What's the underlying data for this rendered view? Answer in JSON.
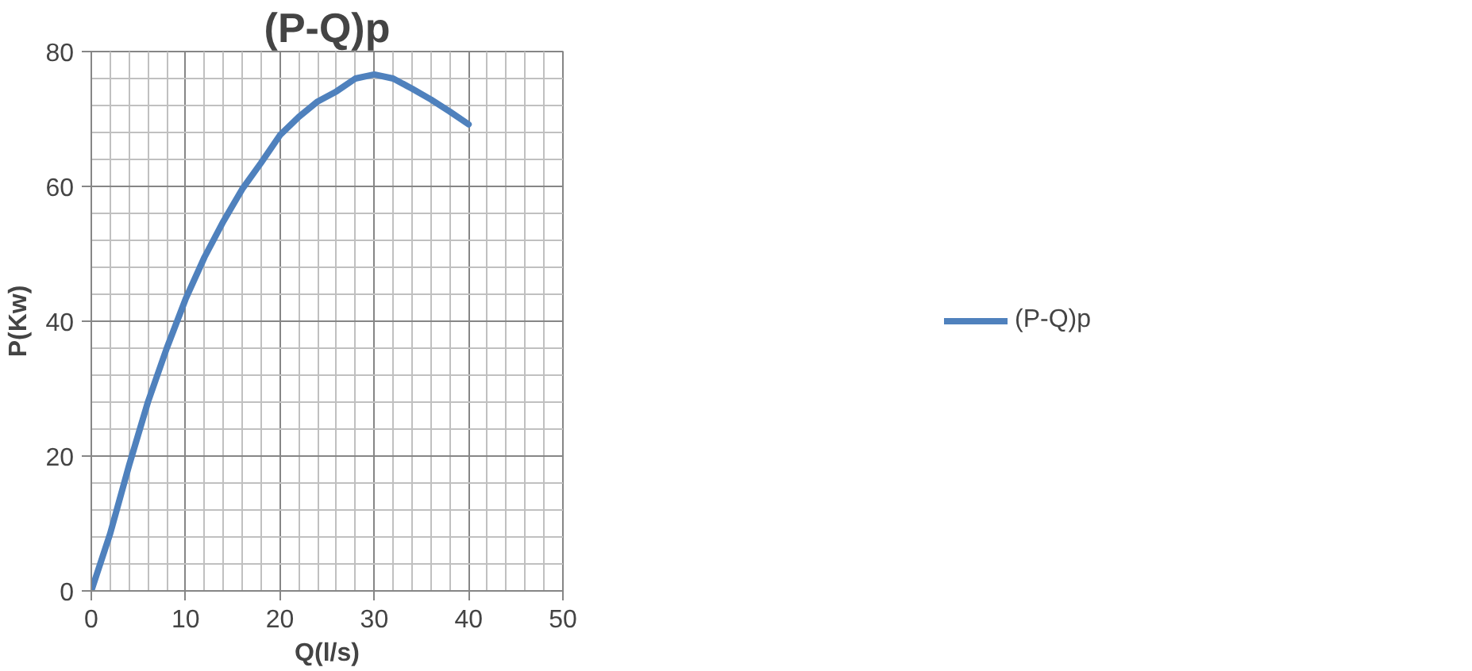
{
  "chart_data": {
    "type": "line",
    "title": "(P-Q)p",
    "xlabel": "Q(l/s)",
    "ylabel": "P(Kw)",
    "series": [
      {
        "name": "(P-Q)p",
        "color": "#4f81bd",
        "x": [
          0,
          2,
          4,
          6,
          8,
          10,
          12,
          14,
          16,
          18,
          20,
          22,
          24,
          26,
          28,
          30,
          32,
          34,
          36,
          38,
          40
        ],
        "values": [
          0,
          8.5,
          18.6,
          28,
          36,
          43.3,
          49.5,
          54.8,
          59.6,
          63.5,
          67.6,
          70.3,
          72.6,
          74.1,
          76,
          76.6,
          76,
          74.5,
          72.9,
          71.1,
          69.2
        ]
      }
    ],
    "xlim": [
      0,
      50
    ],
    "ylim": [
      0,
      80
    ],
    "xticks": [
      0,
      {
        "value": 2,
        "label": null
      },
      {
        "value": 4,
        "label": null
      },
      {
        "value": 6,
        "label": null
      },
      {
        "value": 8,
        "label": null
      },
      10,
      {
        "value": 12,
        "label": null
      },
      {
        "value": 14,
        "label": null
      },
      {
        "value": 16,
        "label": null
      },
      {
        "value": 18,
        "label": null
      },
      20,
      {
        "value": 22,
        "label": null
      },
      {
        "value": 24,
        "label": null
      },
      {
        "value": 26,
        "label": null
      },
      {
        "value": 28,
        "label": null
      },
      30,
      {
        "value": 32,
        "label": null
      },
      {
        "value": 34,
        "label": null
      },
      {
        "value": 36,
        "label": null
      },
      {
        "value": 38,
        "label": null
      },
      40,
      {
        "value": 42,
        "label": null
      },
      {
        "value": 44,
        "label": null
      },
      {
        "value": 46,
        "label": null
      },
      {
        "value": 48,
        "label": null
      },
      50
    ],
    "yticks": [
      0,
      {
        "value": 4,
        "label": null
      },
      {
        "value": 8,
        "label": null
      },
      {
        "value": 12,
        "label": null
      },
      {
        "value": 16,
        "label": null
      },
      20,
      {
        "value": 24,
        "label": null
      },
      {
        "value": 28,
        "label": null
      },
      {
        "value": 32,
        "label": null
      },
      {
        "value": 36,
        "label": null
      },
      40,
      {
        "value": 44,
        "label": null
      },
      {
        "value": 48,
        "label": null
      },
      {
        "value": 52,
        "label": null
      },
      {
        "value": 56,
        "label": null
      },
      60,
      {
        "value": 64,
        "label": null
      },
      {
        "value": 68,
        "label": null
      },
      {
        "value": 72,
        "label": null
      },
      {
        "value": 76,
        "label": null
      },
      80
    ],
    "grid": true,
    "legend": "right",
    "marker": "none",
    "line_style": "solid"
  }
}
